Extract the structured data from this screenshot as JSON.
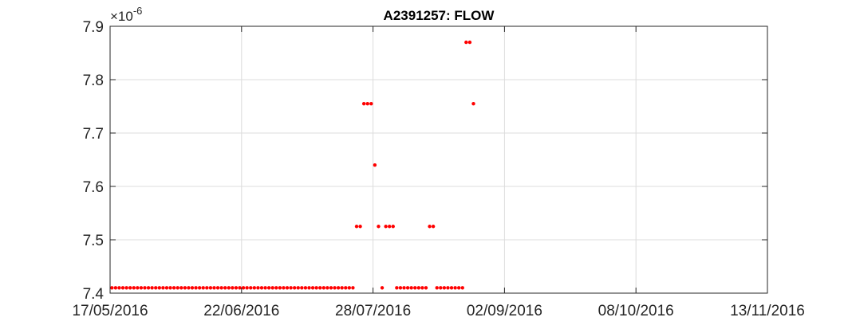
{
  "chart_data": {
    "type": "scatter",
    "title": "A2391257: FLOW",
    "xlabel": "",
    "ylabel": "",
    "y_exponent_label": "×10",
    "y_exponent_power": "-6",
    "x_ticks": [
      "17/05/2016",
      "22/06/2016",
      "28/07/2016",
      "02/09/2016",
      "08/10/2016",
      "13/11/2016"
    ],
    "x_tick_values": [
      "2016-05-17",
      "2016-06-22",
      "2016-07-28",
      "2016-09-02",
      "2016-10-08",
      "2016-11-13"
    ],
    "xlim": [
      "2016-05-17",
      "2016-11-13"
    ],
    "y_ticks": [
      "7.4",
      "7.5",
      "7.6",
      "7.7",
      "7.8",
      "7.9"
    ],
    "y_tick_values": [
      7.4,
      7.5,
      7.6,
      7.7,
      7.8,
      7.9
    ],
    "ylim": [
      7.4,
      7.9
    ],
    "grid": true,
    "marker_color": "#ff0000",
    "series": [
      {
        "x": [
          "2016-05-17",
          "2016-05-18",
          "2016-05-19",
          "2016-05-20",
          "2016-05-21",
          "2016-05-22",
          "2016-05-23",
          "2016-05-24",
          "2016-05-25",
          "2016-05-26",
          "2016-05-27",
          "2016-05-28",
          "2016-05-29",
          "2016-05-30",
          "2016-05-31",
          "2016-06-01",
          "2016-06-02",
          "2016-06-03",
          "2016-06-04",
          "2016-06-05",
          "2016-06-06",
          "2016-06-07",
          "2016-06-08",
          "2016-06-09",
          "2016-06-10",
          "2016-06-11",
          "2016-06-12",
          "2016-06-13",
          "2016-06-14",
          "2016-06-15",
          "2016-06-16",
          "2016-06-17",
          "2016-06-18",
          "2016-06-19",
          "2016-06-20",
          "2016-06-21",
          "2016-06-22",
          "2016-06-23",
          "2016-06-24",
          "2016-06-25",
          "2016-06-26",
          "2016-06-27",
          "2016-06-28",
          "2016-06-29",
          "2016-06-30",
          "2016-07-01",
          "2016-07-02",
          "2016-07-03",
          "2016-07-04",
          "2016-07-05",
          "2016-07-06",
          "2016-07-07",
          "2016-07-08",
          "2016-07-09",
          "2016-07-10",
          "2016-07-11",
          "2016-07-12",
          "2016-07-13",
          "2016-07-14",
          "2016-07-15",
          "2016-07-16",
          "2016-07-17",
          "2016-07-18",
          "2016-07-19",
          "2016-07-20",
          "2016-07-21",
          "2016-07-22",
          "2016-07-23",
          "2016-07-24",
          "2016-07-25",
          "2016-07-26",
          "2016-07-27",
          "2016-07-28",
          "2016-07-29",
          "2016-07-30",
          "2016-07-31",
          "2016-08-01",
          "2016-08-02",
          "2016-08-03",
          "2016-08-04",
          "2016-08-05",
          "2016-08-06",
          "2016-08-07",
          "2016-08-08",
          "2016-08-09",
          "2016-08-10",
          "2016-08-11",
          "2016-08-12",
          "2016-08-13",
          "2016-08-14",
          "2016-08-15",
          "2016-08-16",
          "2016-08-17",
          "2016-08-18",
          "2016-08-19",
          "2016-08-20",
          "2016-08-21",
          "2016-08-22",
          "2016-08-23",
          "2016-08-24"
        ],
        "y": [
          7.41,
          7.41,
          7.41,
          7.41,
          7.41,
          7.41,
          7.41,
          7.41,
          7.41,
          7.41,
          7.41,
          7.41,
          7.41,
          7.41,
          7.41,
          7.41,
          7.41,
          7.41,
          7.41,
          7.41,
          7.41,
          7.41,
          7.41,
          7.41,
          7.41,
          7.41,
          7.41,
          7.41,
          7.41,
          7.41,
          7.41,
          7.41,
          7.41,
          7.41,
          7.41,
          7.41,
          7.41,
          7.41,
          7.41,
          7.41,
          7.41,
          7.41,
          7.41,
          7.41,
          7.41,
          7.41,
          7.41,
          7.41,
          7.41,
          7.41,
          7.41,
          7.41,
          7.41,
          7.41,
          7.41,
          7.41,
          7.41,
          7.41,
          7.41,
          7.41,
          7.41,
          7.41,
          7.41,
          7.41,
          7.41,
          7.41,
          7.41,
          7.525,
          7.525,
          7.755,
          7.755,
          7.755,
          7.64,
          7.525,
          7.41,
          7.525,
          7.525,
          7.525,
          7.41,
          7.41,
          7.41,
          7.41,
          7.41,
          7.41,
          7.41,
          7.41,
          7.41,
          7.525,
          7.525,
          7.41,
          7.41,
          7.41,
          7.41,
          7.41,
          7.41,
          7.41,
          7.41,
          7.87,
          7.87,
          7.755
        ]
      }
    ]
  }
}
